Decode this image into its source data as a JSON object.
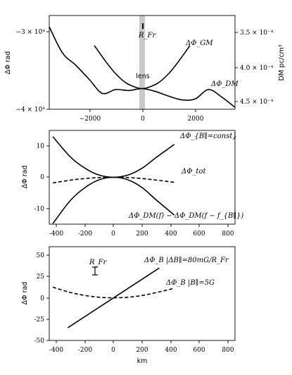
{
  "chart_data": [
    {
      "type": "line",
      "xlim": [
        -3500,
        3500
      ],
      "xticks": [
        "−2000",
        "0",
        "2000"
      ],
      "ylabel_left": "ΔΦ rad",
      "yticks_left": [
        "−3 × 10⁴",
        "−4 × 10⁴"
      ],
      "ylabel_right": "DM pc/cm³",
      "yticks_right": [
        "3.5 × 10⁻⁴",
        "4.0 × 10⁻⁴",
        "4.5 × 10⁻⁴"
      ],
      "band_label": "lens",
      "marker_label": "R_Fr",
      "series": [
        {
          "name": "ΔΦ_GM",
          "x": [
            -1800,
            -1400,
            -1000,
            -600,
            -200,
            0,
            200,
            600,
            1000,
            1400,
            1800
          ],
          "y": [
            -3.32,
            -3.48,
            -3.62,
            -3.72,
            -3.77,
            -3.78,
            -3.77,
            -3.72,
            -3.62,
            -3.48,
            -3.32
          ]
        },
        {
          "name": "ΔΦ_DM",
          "x": [
            -3500,
            -3000,
            -2500,
            -2000,
            -1500,
            -1000,
            -500,
            0,
            500,
            1000,
            1500,
            2000,
            2500,
            3000,
            3500
          ],
          "y": [
            -3.12,
            -3.4,
            -3.53,
            -3.68,
            -3.83,
            -3.79,
            -3.8,
            -3.78,
            -3.81,
            -3.86,
            -3.9,
            -3.89,
            -3.79,
            -3.87,
            -3.98
          ]
        }
      ],
      "series_labels": [
        "ΔΦ_GM",
        "ΔΦ_DM"
      ]
    },
    {
      "type": "line",
      "xlim": [
        -450,
        850
      ],
      "ylim": [
        -15,
        15
      ],
      "xticks": [
        -400,
        -200,
        0,
        200,
        400,
        600,
        800
      ],
      "yticks": [
        10,
        0,
        -10
      ],
      "ylabel": "ΔΦ rad",
      "series": [
        {
          "name": "ΔΦ_{B∥=const}",
          "x": [
            -425,
            -300,
            -200,
            -100,
            0,
            100,
            200,
            300,
            425
          ],
          "y": [
            13.0,
            6.4,
            2.9,
            0.7,
            0,
            0.7,
            2.9,
            6.4,
            10.5
          ]
        },
        {
          "name": "ΔΦ_tot",
          "x": [
            -425,
            -300,
            -200,
            -100,
            0,
            100,
            200,
            300,
            425
          ],
          "y": [
            -1.8,
            -0.9,
            -0.4,
            -0.1,
            0,
            -0.1,
            -0.4,
            -0.9,
            -1.6
          ]
        },
        {
          "name": "ΔΦ_DM(f) − ΔΦ_DM(f − f_{B∥})",
          "x": [
            -425,
            -300,
            -200,
            -100,
            0,
            100,
            200,
            300,
            425
          ],
          "y": [
            -14.8,
            -7.3,
            -3.3,
            -0.8,
            0,
            -0.8,
            -3.3,
            -7.3,
            -12.1
          ]
        }
      ],
      "series_labels": [
        "ΔΦ_{B∥=const}",
        "ΔΦ_tot",
        "ΔΦ_DM(f) − ΔΦ_DM(f − f_{B∥})"
      ]
    },
    {
      "type": "line",
      "xlim": [
        -450,
        850
      ],
      "ylim": [
        -50,
        60
      ],
      "xticks": [
        -400,
        -200,
        0,
        200,
        400,
        600,
        800
      ],
      "yticks": [
        50,
        25,
        0,
        -25,
        -50
      ],
      "ylabel": "ΔΦ rad",
      "xlabel": "km",
      "marker_label": "R_Fr",
      "series": [
        {
          "name": "ΔΦ_B |ΔB∥=80mG/R_Fr",
          "x": [
            -320,
            320
          ],
          "y": [
            -35,
            35
          ]
        },
        {
          "name": "ΔΦ_B |B∥=5G",
          "x": [
            -425,
            -300,
            -200,
            -100,
            0,
            100,
            200,
            300,
            425
          ],
          "y": [
            12.5,
            6.2,
            2.8,
            0.7,
            0,
            0.7,
            2.8,
            6.2,
            11.2
          ]
        }
      ],
      "series_labels": [
        "ΔΦ_B |ΔB∥=80mG/R_Fr",
        "ΔΦ_B |B∥=5G"
      ]
    }
  ]
}
